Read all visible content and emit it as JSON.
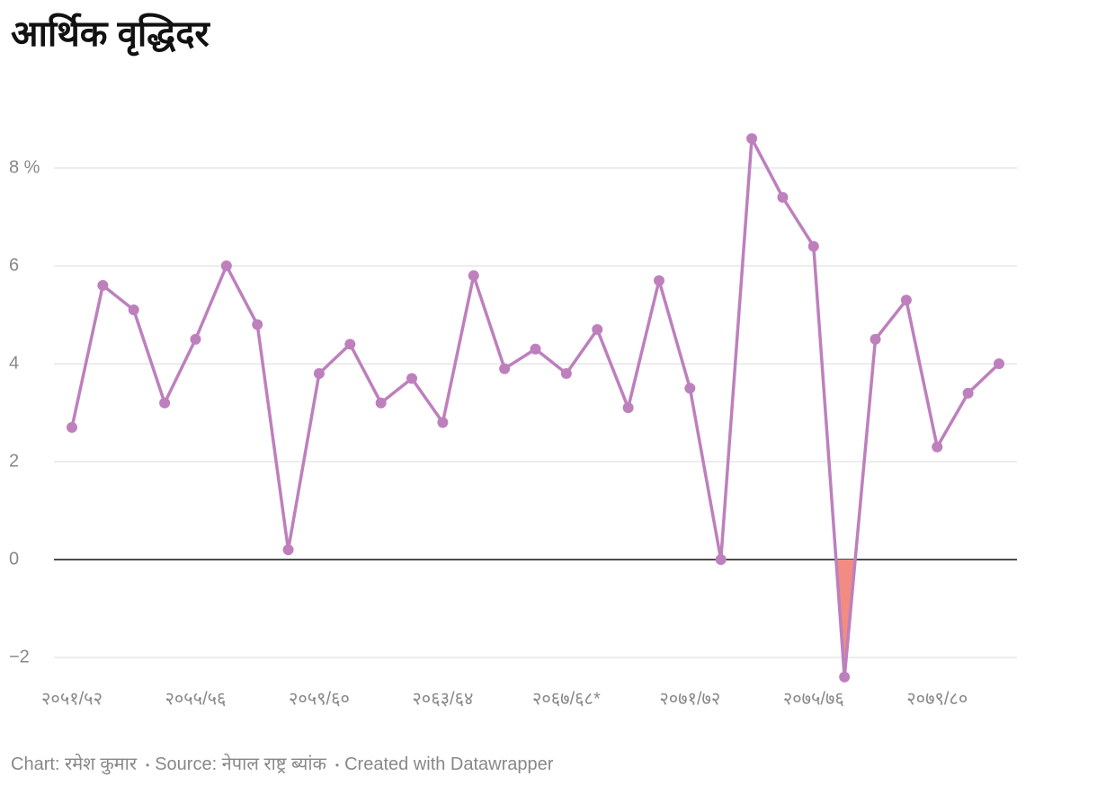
{
  "chart_data": {
    "type": "line",
    "title": "आर्थिक वृद्धिदर",
    "categories": [
      "२०५१/५२",
      null,
      null,
      null,
      "२०५५/५६",
      null,
      null,
      null,
      "२०५९/६०",
      null,
      null,
      null,
      "२०६३/६४",
      null,
      null,
      null,
      "२०६७/६८*",
      null,
      null,
      null,
      "२०७१/७२",
      null,
      null,
      null,
      "२०७५/७६",
      null,
      null,
      null,
      "२०७९/८०",
      null,
      null
    ],
    "values": [
      2.7,
      5.6,
      5.1,
      3.2,
      4.5,
      6.0,
      4.8,
      0.2,
      3.8,
      4.4,
      3.2,
      3.7,
      2.8,
      5.8,
      3.9,
      4.3,
      3.8,
      4.7,
      3.1,
      5.7,
      3.5,
      0.0,
      8.6,
      7.4,
      6.4,
      -2.4,
      4.5,
      5.3,
      2.3,
      3.4,
      4.0
    ],
    "color": "#bd80bd",
    "negative_fill": "#f28b82",
    "ylim": [
      -2.4,
      8.6
    ],
    "yticks": [
      {
        "value": -2,
        "label": "−2"
      },
      0,
      2,
      4,
      6,
      {
        "value": 8,
        "label": "8 %"
      }
    ],
    "grid": true,
    "footer": {
      "credit": "Chart: रमेश कुमार",
      "source": "Source: नेपाल राष्ट्र ब्यांक",
      "tool": "Created with Datawrapper"
    }
  }
}
